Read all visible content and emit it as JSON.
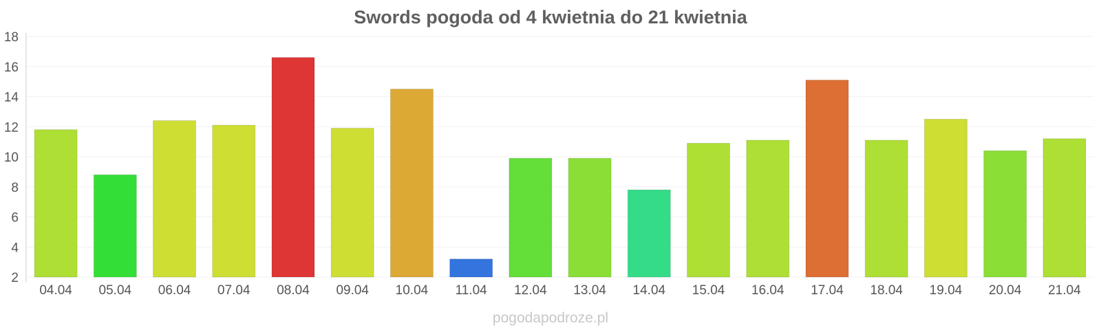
{
  "watermark": "pogodapodroze.pl",
  "chart_data": {
    "type": "bar",
    "title": "Swords pogoda od 4 kwietnia do 21 kwietnia",
    "xlabel": "",
    "ylabel": "",
    "categories": [
      "04.04",
      "05.04",
      "06.04",
      "07.04",
      "08.04",
      "09.04",
      "10.04",
      "11.04",
      "12.04",
      "13.04",
      "14.04",
      "15.04",
      "16.04",
      "17.04",
      "18.04",
      "19.04",
      "20.04",
      "21.04"
    ],
    "values": [
      11.8,
      8.8,
      12.4,
      12.1,
      16.6,
      11.9,
      14.5,
      3.2,
      9.9,
      9.9,
      7.8,
      10.9,
      11.1,
      15.1,
      11.1,
      12.5,
      10.4,
      11.2
    ],
    "colors": [
      "#aedf34",
      "#33df37",
      "#cede33",
      "#cede33",
      "#de3535",
      "#cede33",
      "#dca934",
      "#3474de",
      "#64de38",
      "#8ade36",
      "#34dc87",
      "#aedf34",
      "#aedf34",
      "#dd6f34",
      "#aedf34",
      "#cede33",
      "#8ade36",
      "#aedf34"
    ],
    "ylim": [
      2,
      18
    ],
    "yticks": [
      2,
      4,
      6,
      8,
      10,
      12,
      14,
      16,
      18
    ],
    "grid": true,
    "legend": "none"
  }
}
